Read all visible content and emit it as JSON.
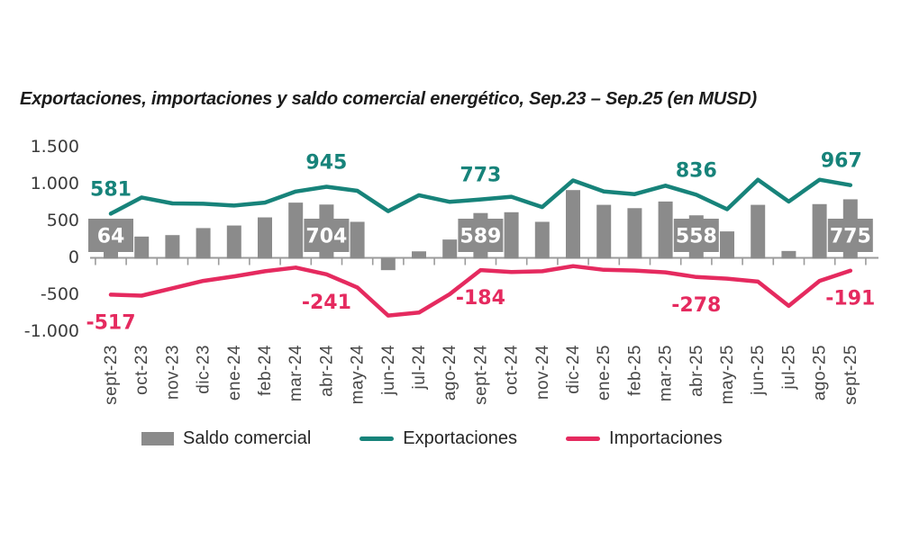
{
  "title": "Exportaciones, importaciones y saldo comercial energético, Sep.23 – Sep.25 (en MUSD)",
  "legend": {
    "items": [
      {
        "label": "Saldo comercial",
        "swatch": "bar"
      },
      {
        "label": "Exportaciones",
        "swatch": "line"
      },
      {
        "label": "Importaciones",
        "swatch": "line"
      }
    ]
  },
  "chart_data": {
    "type": "combo (bar + 2 lines)",
    "title": "Exportaciones, importaciones y saldo comercial energético, Sep.23 – Sep.25 (en MUSD)",
    "categories": [
      "sept-23",
      "oct-23",
      "nov-23",
      "dic-23",
      "ene-24",
      "feb-24",
      "mar-24",
      "abr-24",
      "may-24",
      "jun-24",
      "jul-24",
      "ago-24",
      "sept-24",
      "oct-24",
      "nov-24",
      "dic-24",
      "ene-25",
      "feb-25",
      "mar-25",
      "abr-25",
      "may-25",
      "jun-25",
      "jul-25",
      "ago-25",
      "sept-25"
    ],
    "series": [
      {
        "name": "Saldo comercial",
        "type": "bar",
        "color": "#8b8b8b",
        "values": [
          64,
          270,
          290,
          385,
          420,
          530,
          730,
          704,
          470,
          -185,
          70,
          230,
          589,
          600,
          470,
          900,
          700,
          655,
          745,
          558,
          340,
          700,
          75,
          710,
          775
        ]
      },
      {
        "name": "Exportaciones",
        "type": "line",
        "color": "#17837a",
        "values": [
          581,
          800,
          720,
          715,
          690,
          730,
          880,
          945,
          890,
          615,
          830,
          740,
          773,
          810,
          670,
          1030,
          880,
          845,
          960,
          836,
          640,
          1040,
          745,
          1040,
          967
        ]
      },
      {
        "name": "Importaciones",
        "type": "line",
        "color": "#e52a5f",
        "values": [
          -517,
          -530,
          -430,
          -330,
          -270,
          -200,
          -150,
          -241,
          -420,
          -800,
          -760,
          -510,
          -184,
          -210,
          -200,
          -130,
          -180,
          -190,
          -215,
          -278,
          -300,
          -340,
          -670,
          -330,
          -191
        ]
      }
    ],
    "annotated_months": [
      {
        "index": 0,
        "category": "sept-23",
        "exportaciones": 581,
        "importaciones": -517,
        "saldo": 64
      },
      {
        "index": 7,
        "category": "abr-24",
        "exportaciones": 945,
        "importaciones": -241,
        "saldo": 704
      },
      {
        "index": 12,
        "category": "sept-24",
        "exportaciones": 773,
        "importaciones": -184,
        "saldo": 589
      },
      {
        "index": 19,
        "category": "abr-25",
        "exportaciones": 836,
        "importaciones": -278,
        "saldo": 558
      },
      {
        "index": 24,
        "category": "sept-25",
        "exportaciones": 967,
        "importaciones": -191,
        "saldo": 775
      }
    ],
    "y_axis": {
      "tick_labels": [
        "1.500",
        "1.000",
        "500",
        "0",
        "-500",
        "-1.000"
      ],
      "tick_values": [
        1500,
        1000,
        500,
        0,
        -500,
        -1000
      ],
      "min": -1000,
      "max": 1500
    },
    "grid": false,
    "legend_position": "bottom",
    "colors": {
      "saldo": "#8b8b8b",
      "exportaciones": "#17837a",
      "importaciones": "#e52a5f",
      "badge_text": "#ffffff",
      "axis": "#9b9b9b",
      "axis_text": "#3b3b3b"
    }
  }
}
